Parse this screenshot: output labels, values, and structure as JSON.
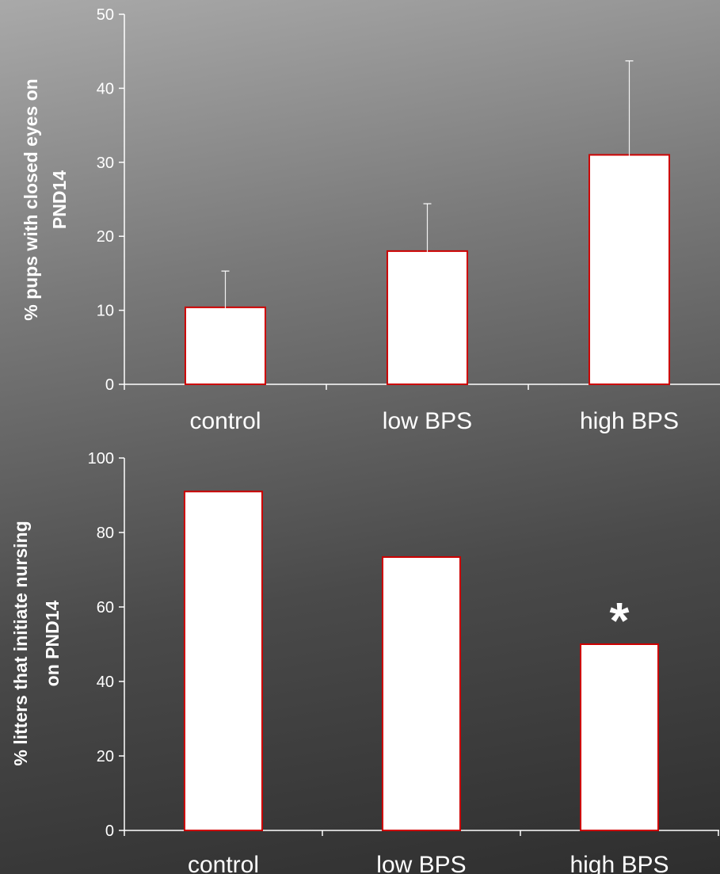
{
  "chart_data": [
    {
      "type": "bar",
      "categories": [
        "control",
        "low BPS",
        "high BPS"
      ],
      "values": [
        10.4,
        18.0,
        31.0
      ],
      "error_bars": [
        4.9,
        6.4,
        12.7
      ],
      "ylabel_lines": [
        "% pups with closed eyes on",
        "PND14"
      ],
      "ylim": [
        0,
        50
      ],
      "yticks": [
        "0",
        "10",
        "20",
        "30",
        "40",
        "50"
      ],
      "annotations": [],
      "grid": false,
      "bar_fill": "#ffffff",
      "bar_edge": "#cc0000"
    },
    {
      "type": "bar",
      "categories": [
        "control",
        "low BPS",
        "high BPS"
      ],
      "values": [
        91.0,
        73.4,
        50.0
      ],
      "ylabel_lines": [
        "% litters that initiate nursing",
        "on PND14"
      ],
      "ylim": [
        0,
        100
      ],
      "yticks": [
        "0",
        "20",
        "40",
        "60",
        "80",
        "100"
      ],
      "annotations": [
        {
          "category": "high BPS",
          "text": "*"
        }
      ],
      "grid": false,
      "bar_fill": "#ffffff",
      "bar_edge": "#cc0000"
    }
  ]
}
